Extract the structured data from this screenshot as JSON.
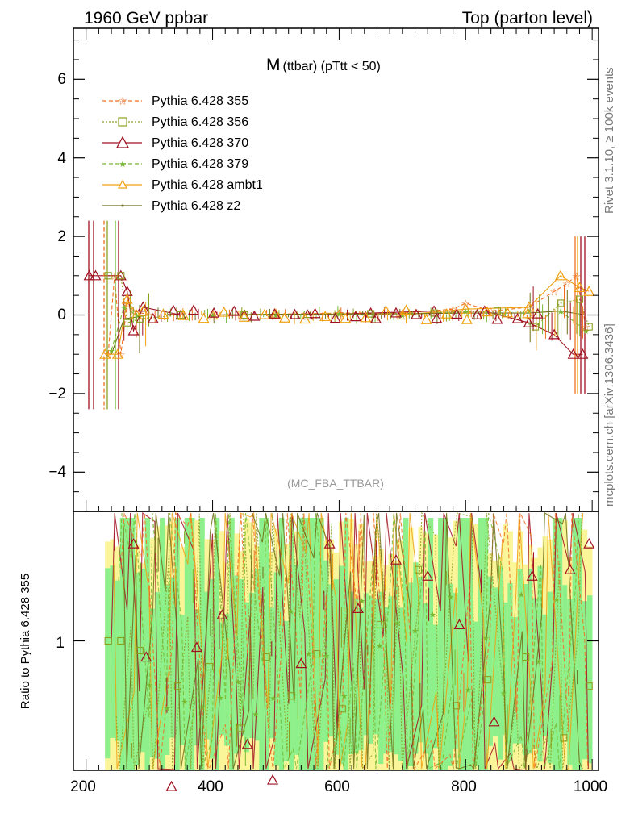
{
  "header": {
    "left": "1960 GeV ppbar",
    "right": "Top (parton level)"
  },
  "side_labels": {
    "rivet": "Rivet 3.1.10, ≥ 100k events",
    "mcplots": "mcplots.cern.ch [arXiv:1306.3436]"
  },
  "chart_data": [
    {
      "type": "line",
      "title_main": "M",
      "title_sub": "(ttbar) (pTtt < 50)",
      "watermark": "(MC_FBA_TTBAR)",
      "xlim": [
        180,
        1010
      ],
      "ylim": [
        -5,
        7.3
      ],
      "y_ticks": [
        "−4",
        "−2",
        "0",
        "2",
        "4",
        "6"
      ],
      "x_ticks": [
        "200",
        "400",
        "600",
        "800",
        "1000"
      ],
      "legend_position": "top-left",
      "legend": [
        "Pythia 6.428 355",
        "Pythia 6.428 356",
        "Pythia 6.428 370",
        "Pythia 6.428 379",
        "Pythia 6.428 ambt1",
        "Pythia 6.428 z2"
      ],
      "colors": {
        "355": "#f07020",
        "356": "#8ca020",
        "370": "#a01020",
        "379": "#78b830",
        "ambt1": "#f0a010",
        "z2": "#6e6e18"
      },
      "series_points": {
        "355": [
          [
            235,
            -1.0
          ],
          [
            245,
            1.0
          ],
          [
            255,
            -1.0
          ],
          [
            265,
            0.3
          ],
          [
            275,
            0.1
          ],
          [
            300,
            0.0
          ],
          [
            400,
            0.0
          ],
          [
            500,
            0.02
          ],
          [
            600,
            0.05
          ],
          [
            700,
            0.05
          ],
          [
            780,
            0.15
          ],
          [
            800,
            0.3
          ],
          [
            840,
            0.1
          ],
          [
            900,
            0.2
          ],
          [
            940,
            0.6
          ],
          [
            960,
            0.8
          ],
          [
            975,
            1.0
          ],
          [
            990,
            -0.3
          ]
        ],
        "356": [
          [
            235,
            1.0
          ],
          [
            255,
            1.0
          ],
          [
            265,
            -0.2
          ],
          [
            285,
            -0.1
          ],
          [
            350,
            0.0
          ],
          [
            450,
            0.0
          ],
          [
            550,
            0.02
          ],
          [
            650,
            0.03
          ],
          [
            750,
            0.05
          ],
          [
            850,
            0.1
          ],
          [
            910,
            -0.3
          ],
          [
            950,
            0.3
          ],
          [
            980,
            0.4
          ],
          [
            995,
            -0.3
          ]
        ],
        "370": [
          [
            205,
            1.0
          ],
          [
            215,
            1.0
          ],
          [
            255,
            1.0
          ],
          [
            265,
            0.6
          ],
          [
            275,
            -0.4
          ],
          [
            290,
            0.2
          ],
          [
            350,
            0.0
          ],
          [
            450,
            0.0
          ],
          [
            550,
            0.0
          ],
          [
            650,
            0.05
          ],
          [
            750,
            0.1
          ],
          [
            830,
            0.1
          ],
          [
            900,
            -0.2
          ],
          [
            940,
            -0.5
          ],
          [
            970,
            -1.0
          ],
          [
            985,
            -1.0
          ]
        ],
        "379": [
          [
            240,
            -0.9
          ],
          [
            260,
            0.2
          ],
          [
            280,
            0.0
          ],
          [
            400,
            0.0
          ],
          [
            500,
            0.0
          ],
          [
            600,
            0.03
          ],
          [
            700,
            0.0
          ],
          [
            800,
            0.1
          ],
          [
            900,
            0.1
          ],
          [
            950,
            0.1
          ],
          [
            990,
            -0.4
          ]
        ],
        "ambt1": [
          [
            230,
            -1.0
          ],
          [
            250,
            -1.0
          ],
          [
            265,
            0.4
          ],
          [
            280,
            0.0
          ],
          [
            400,
            0.0
          ],
          [
            500,
            0.02
          ],
          [
            600,
            0.0
          ],
          [
            700,
            0.0
          ],
          [
            800,
            0.15
          ],
          [
            900,
            0.2
          ],
          [
            950,
            1.0
          ],
          [
            980,
            0.7
          ],
          [
            995,
            0.6
          ]
        ],
        "z2": [
          [
            240,
            -1.0
          ],
          [
            260,
            -0.1
          ],
          [
            300,
            0.0
          ],
          [
            400,
            0.0
          ],
          [
            500,
            0.02
          ],
          [
            600,
            0.02
          ],
          [
            700,
            0.03
          ],
          [
            800,
            0.05
          ],
          [
            900,
            0.05
          ],
          [
            950,
            0.1
          ],
          [
            990,
            0.0
          ]
        ]
      }
    },
    {
      "type": "line",
      "ylabel": "Ratio to Pythia 6.428 355",
      "xlim": [
        180,
        1010
      ],
      "ylim": [
        0.6,
        1.4
      ],
      "y_ticks": [
        "1"
      ],
      "note": "ratio panel, reference series Pythia 6.428 355",
      "points_370": [
        [
          275,
          1.3
        ],
        [
          295,
          0.95
        ],
        [
          335,
          0.55
        ],
        [
          375,
          0.98
        ],
        [
          415,
          1.08
        ],
        [
          455,
          0.68
        ],
        [
          495,
          0.57
        ],
        [
          540,
          0.93
        ],
        [
          585,
          1.3
        ],
        [
          630,
          1.1
        ],
        [
          690,
          1.25
        ],
        [
          740,
          1.2
        ],
        [
          790,
          1.05
        ],
        [
          845,
          0.75
        ],
        [
          905,
          1.2
        ],
        [
          965,
          1.22
        ],
        [
          995,
          1.3
        ]
      ],
      "points_356": [
        [
          235,
          1.0
        ],
        [
          255,
          1.0
        ],
        [
          285,
          0.97
        ],
        [
          345,
          0.86
        ],
        [
          395,
          0.92
        ],
        [
          445,
          0.73
        ],
        [
          485,
          0.95
        ],
        [
          525,
          0.83
        ],
        [
          565,
          0.96
        ],
        [
          605,
          0.79
        ],
        [
          665,
          1.05
        ],
        [
          725,
          1.22
        ],
        [
          785,
          0.8
        ],
        [
          835,
          0.88
        ],
        [
          895,
          0.95
        ],
        [
          955,
          0.7
        ],
        [
          995,
          0.86
        ]
      ]
    }
  ]
}
